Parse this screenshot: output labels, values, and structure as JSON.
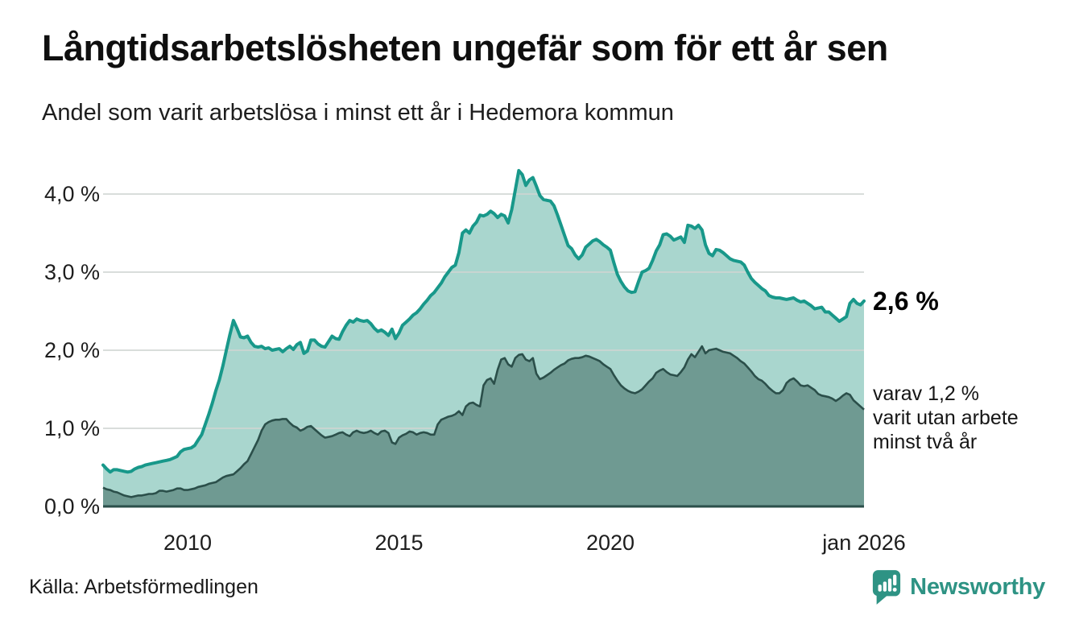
{
  "header": {
    "title": "Långtidsarbetslösheten ungefär som för ett år sen",
    "subtitle": "Andel som varit arbetslösa i minst ett år i Hedemora kommun"
  },
  "annotations": {
    "latest_total_label": "2,6 %",
    "latest_two_year_lines": [
      "varav 1,2 %",
      "varit utan arbete",
      "minst två år"
    ]
  },
  "footer": {
    "source": "Källa: Arbetsförmedlingen",
    "brand_name": "Newsworthy",
    "brand_icon": "speech-bubble-bar-chart-icon"
  },
  "colors": {
    "total_line": "#18988a",
    "total_fill": "#a9d6ce",
    "two_year_line": "#2b4f4a",
    "two_year_fill": "#6f9a92",
    "gridline": "#cfd4d2",
    "axis": "#2b4f4a",
    "brand": "#2e9384"
  },
  "chart_data": {
    "type": "area",
    "title": "Långtidsarbetslösheten ungefär som för ett år sen",
    "subtitle": "Andel som varit arbetslösa i minst ett år i Hedemora kommun",
    "unit": "%",
    "frequency": "monthly",
    "x_start": "2008-01",
    "x_end": "2026-01",
    "ylim": [
      0,
      4.5
    ],
    "grid": true,
    "y_gridlines": [
      1.0,
      2.0,
      3.0,
      4.0
    ],
    "y_tick_labels": [
      "0,0 %",
      "1,0 %",
      "2,0 %",
      "3,0 %",
      "4,0 %"
    ],
    "x_ticks": [
      {
        "label": "2010",
        "year": 2010.0
      },
      {
        "label": "2015",
        "year": 2015.0
      },
      {
        "label": "2020",
        "year": 2020.0
      },
      {
        "label": "jan 2026",
        "year": 2026.0
      }
    ],
    "series": [
      {
        "name": "Andel som varit arbetslösa i minst ett år",
        "last_value": 2.6,
        "values": [
          0.53,
          0.48,
          0.44,
          0.47,
          0.47,
          0.46,
          0.45,
          0.44,
          0.45,
          0.48,
          0.5,
          0.51,
          0.53,
          0.54,
          0.55,
          0.56,
          0.57,
          0.58,
          0.59,
          0.6,
          0.62,
          0.64,
          0.7,
          0.73,
          0.74,
          0.75,
          0.78,
          0.85,
          0.92,
          1.05,
          1.18,
          1.32,
          1.48,
          1.62,
          1.8,
          2.0,
          2.2,
          2.38,
          2.28,
          2.17,
          2.16,
          2.18,
          2.1,
          2.05,
          2.04,
          2.05,
          2.02,
          2.03,
          2.0,
          2.01,
          2.02,
          1.98,
          2.02,
          2.05,
          2.01,
          2.07,
          2.1,
          1.96,
          1.99,
          2.13,
          2.13,
          2.08,
          2.05,
          2.04,
          2.11,
          2.18,
          2.15,
          2.14,
          2.24,
          2.32,
          2.38,
          2.36,
          2.4,
          2.38,
          2.37,
          2.38,
          2.34,
          2.28,
          2.24,
          2.26,
          2.23,
          2.19,
          2.27,
          2.15,
          2.22,
          2.32,
          2.36,
          2.4,
          2.45,
          2.48,
          2.53,
          2.59,
          2.64,
          2.7,
          2.74,
          2.8,
          2.86,
          2.94,
          3.0,
          3.06,
          3.09,
          3.25,
          3.5,
          3.54,
          3.5,
          3.59,
          3.64,
          3.73,
          3.72,
          3.74,
          3.78,
          3.75,
          3.7,
          3.74,
          3.72,
          3.63,
          3.8,
          4.05,
          4.3,
          4.25,
          4.11,
          4.18,
          4.21,
          4.1,
          3.98,
          3.93,
          3.92,
          3.91,
          3.85,
          3.73,
          3.6,
          3.47,
          3.34,
          3.3,
          3.22,
          3.17,
          3.22,
          3.32,
          3.36,
          3.4,
          3.42,
          3.39,
          3.35,
          3.32,
          3.28,
          3.12,
          2.97,
          2.88,
          2.81,
          2.76,
          2.74,
          2.75,
          2.88,
          3.0,
          3.02,
          3.05,
          3.15,
          3.27,
          3.35,
          3.48,
          3.49,
          3.46,
          3.41,
          3.43,
          3.45,
          3.38,
          3.6,
          3.59,
          3.56,
          3.6,
          3.54,
          3.35,
          3.24,
          3.21,
          3.29,
          3.28,
          3.25,
          3.21,
          3.17,
          3.15,
          3.14,
          3.13,
          3.09,
          3.0,
          2.92,
          2.87,
          2.83,
          2.79,
          2.76,
          2.7,
          2.68,
          2.67,
          2.67,
          2.66,
          2.65,
          2.66,
          2.67,
          2.64,
          2.62,
          2.63,
          2.6,
          2.57,
          2.53,
          2.54,
          2.55,
          2.49,
          2.49,
          2.45,
          2.41,
          2.37,
          2.4,
          2.43,
          2.6,
          2.65,
          2.6,
          2.58,
          2.63
        ]
      },
      {
        "name": "varav utan arbete minst två år",
        "last_value": 1.2,
        "values": [
          0.24,
          0.22,
          0.21,
          0.19,
          0.18,
          0.16,
          0.14,
          0.13,
          0.12,
          0.13,
          0.14,
          0.14,
          0.15,
          0.16,
          0.16,
          0.17,
          0.2,
          0.2,
          0.19,
          0.2,
          0.21,
          0.23,
          0.23,
          0.21,
          0.21,
          0.22,
          0.23,
          0.25,
          0.26,
          0.27,
          0.29,
          0.3,
          0.31,
          0.34,
          0.37,
          0.39,
          0.4,
          0.41,
          0.45,
          0.49,
          0.54,
          0.58,
          0.67,
          0.76,
          0.85,
          0.97,
          1.05,
          1.08,
          1.1,
          1.11,
          1.11,
          1.12,
          1.12,
          1.07,
          1.03,
          1.01,
          0.97,
          0.99,
          1.02,
          1.03,
          0.99,
          0.95,
          0.91,
          0.88,
          0.89,
          0.9,
          0.92,
          0.94,
          0.95,
          0.92,
          0.9,
          0.95,
          0.97,
          0.95,
          0.94,
          0.95,
          0.97,
          0.94,
          0.92,
          0.96,
          0.97,
          0.94,
          0.82,
          0.8,
          0.88,
          0.91,
          0.93,
          0.96,
          0.95,
          0.92,
          0.94,
          0.95,
          0.94,
          0.92,
          0.92,
          1.05,
          1.11,
          1.13,
          1.15,
          1.16,
          1.18,
          1.22,
          1.17,
          1.28,
          1.32,
          1.33,
          1.3,
          1.28,
          1.55,
          1.62,
          1.64,
          1.57,
          1.75,
          1.88,
          1.9,
          1.82,
          1.79,
          1.9,
          1.94,
          1.95,
          1.88,
          1.86,
          1.9,
          1.7,
          1.63,
          1.65,
          1.68,
          1.71,
          1.75,
          1.78,
          1.81,
          1.83,
          1.87,
          1.89,
          1.9,
          1.9,
          1.91,
          1.93,
          1.92,
          1.9,
          1.88,
          1.86,
          1.82,
          1.79,
          1.76,
          1.68,
          1.61,
          1.55,
          1.51,
          1.48,
          1.46,
          1.45,
          1.47,
          1.5,
          1.55,
          1.6,
          1.64,
          1.71,
          1.74,
          1.76,
          1.72,
          1.69,
          1.68,
          1.67,
          1.72,
          1.78,
          1.88,
          1.95,
          1.91,
          1.98,
          2.05,
          1.96,
          2.0,
          2.01,
          2.02,
          2.0,
          1.98,
          1.97,
          1.96,
          1.93,
          1.9,
          1.86,
          1.83,
          1.78,
          1.73,
          1.67,
          1.63,
          1.61,
          1.57,
          1.52,
          1.48,
          1.45,
          1.45,
          1.49,
          1.58,
          1.62,
          1.64,
          1.6,
          1.55,
          1.54,
          1.55,
          1.52,
          1.49,
          1.44,
          1.42,
          1.41,
          1.4,
          1.38,
          1.35,
          1.38,
          1.42,
          1.45,
          1.43,
          1.36,
          1.32,
          1.28,
          1.24
        ]
      }
    ]
  }
}
